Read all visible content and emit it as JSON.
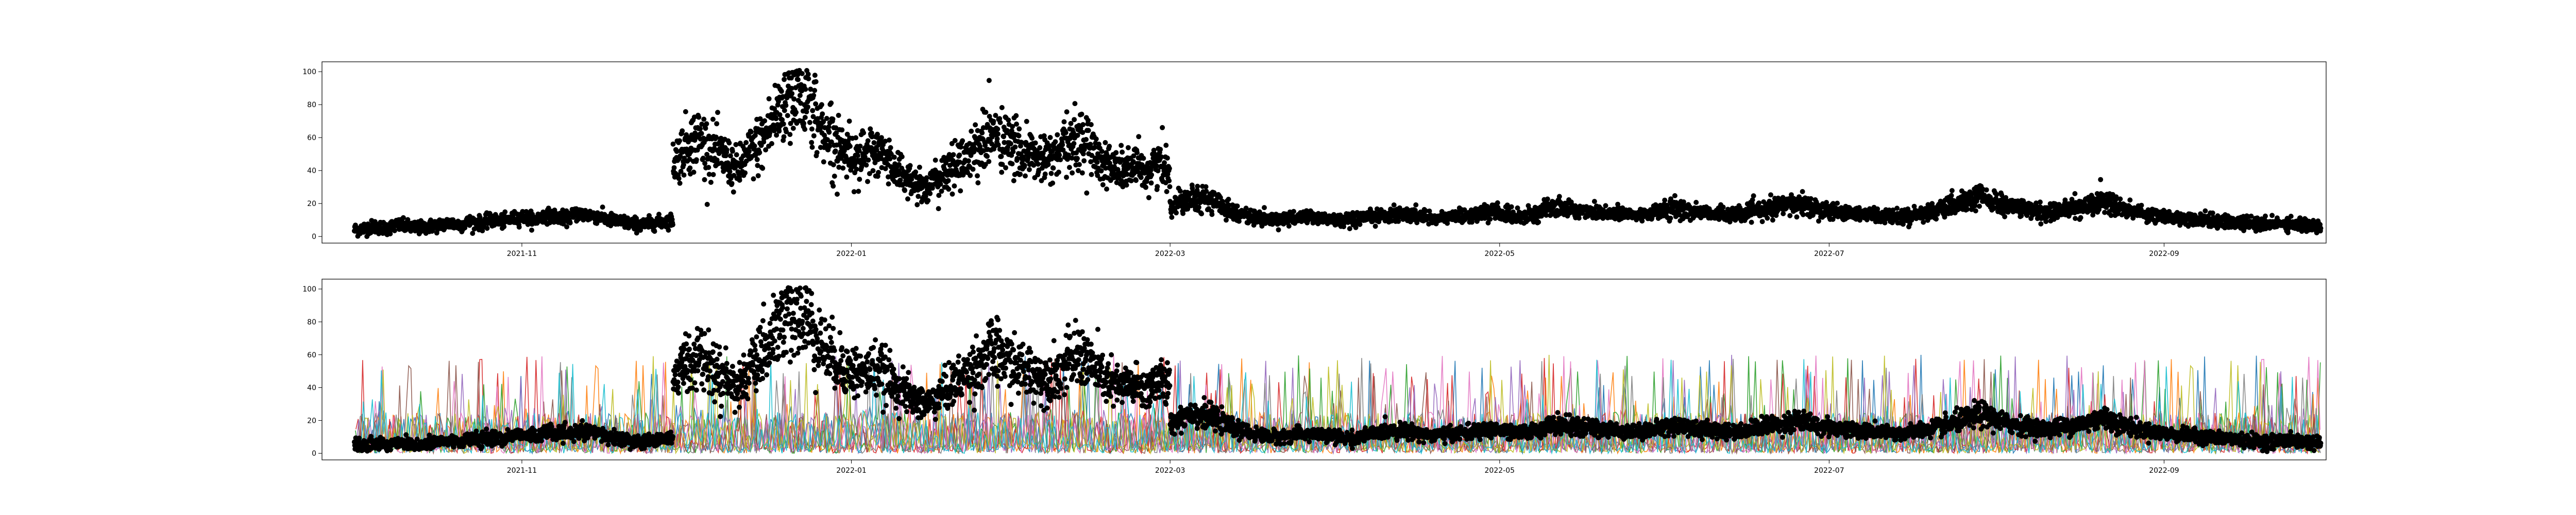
{
  "chart_data": [
    {
      "type": "scatter",
      "title": "",
      "xlabel": "",
      "ylabel": "",
      "x_range": [
        "2021-09-25",
        "2022-10-01"
      ],
      "xticks": [
        {
          "date": "2021-11-01",
          "label": "2021-11"
        },
        {
          "date": "2022-01-01",
          "label": "2022-01"
        },
        {
          "date": "2022-03-01",
          "label": "2022-03"
        },
        {
          "date": "2022-05-01",
          "label": "2022-05"
        },
        {
          "date": "2022-07-01",
          "label": "2022-07"
        },
        {
          "date": "2022-09-01",
          "label": "2022-09"
        }
      ],
      "yticks": [
        0,
        20,
        40,
        60,
        80,
        100
      ],
      "ylim": [
        -4,
        106
      ],
      "grid": false,
      "legend": "none",
      "marker_color": "#000000",
      "data_range": [
        "2021-10-01",
        "2022-09-30"
      ],
      "segments": [
        {
          "start": "2021-10-01",
          "end": "2021-11-28",
          "values": [
            4,
            5,
            6,
            5,
            7,
            6,
            5,
            6,
            7,
            8,
            7,
            9,
            8,
            10,
            9,
            11,
            12,
            10,
            13,
            12,
            11,
            14,
            13,
            12,
            10,
            9,
            8,
            7,
            8,
            9,
            10
          ]
        },
        {
          "start": "2021-11-29",
          "end": "2022-02-28",
          "values": [
            45,
            55,
            60,
            52,
            48,
            40,
            50,
            58,
            72,
            85,
            88,
            75,
            62,
            55,
            50,
            48,
            52,
            45,
            38,
            32,
            30,
            36,
            42,
            48,
            55,
            62,
            58,
            52,
            50,
            46,
            48,
            55,
            60,
            52,
            44,
            40,
            42,
            38,
            45,
            40
          ]
        },
        {
          "start": "2022-03-01",
          "end": "2022-09-30",
          "values": [
            18,
            25,
            22,
            16,
            12,
            10,
            11,
            12,
            10,
            9,
            12,
            14,
            13,
            11,
            12,
            13,
            15,
            12,
            14,
            18,
            16,
            15,
            14,
            13,
            15,
            17,
            15,
            14,
            13,
            16,
            18,
            20,
            17,
            15,
            14,
            13,
            12,
            14,
            16,
            20,
            24,
            19,
            17,
            15,
            16,
            18,
            22,
            17,
            14,
            12,
            11,
            10,
            9,
            8,
            7,
            8,
            7,
            6
          ]
        }
      ]
    },
    {
      "type": "scatter",
      "title": "",
      "xlabel": "",
      "ylabel": "",
      "x_range": [
        "2021-09-25",
        "2022-10-01"
      ],
      "xticks": [
        {
          "date": "2021-11-01",
          "label": "2021-11"
        },
        {
          "date": "2022-01-01",
          "label": "2022-01"
        },
        {
          "date": "2022-03-01",
          "label": "2022-03"
        },
        {
          "date": "2022-05-01",
          "label": "2022-05"
        },
        {
          "date": "2022-07-01",
          "label": "2022-07"
        },
        {
          "date": "2022-09-01",
          "label": "2022-09"
        }
      ],
      "yticks": [
        0,
        20,
        40,
        60,
        80,
        100
      ],
      "ylim": [
        -4,
        106
      ],
      "grid": false,
      "legend": "none",
      "marker_color": "#000000",
      "background_series_colors": [
        "#1f77b4",
        "#ff7f0e",
        "#2ca02c",
        "#d62728",
        "#9467bd",
        "#8c564b",
        "#e377c2",
        "#7f7f7f",
        "#bcbd22",
        "#17becf"
      ],
      "background_series_level": [
        5,
        25
      ],
      "background_series_peak": 60,
      "data_range": [
        "2021-10-01",
        "2022-09-30"
      ],
      "segments": [
        {
          "start": "2021-10-01",
          "end": "2021-11-28",
          "values": [
            4,
            5,
            6,
            5,
            7,
            6,
            5,
            6,
            7,
            8,
            7,
            9,
            8,
            10,
            9,
            11,
            12,
            10,
            13,
            12,
            11,
            14,
            13,
            12,
            10,
            9,
            8,
            7,
            8,
            9,
            10
          ]
        },
        {
          "start": "2021-11-29",
          "end": "2022-02-28",
          "values": [
            45,
            55,
            60,
            52,
            48,
            40,
            50,
            58,
            72,
            85,
            88,
            75,
            62,
            55,
            50,
            48,
            52,
            45,
            38,
            32,
            30,
            36,
            42,
            48,
            55,
            62,
            58,
            52,
            50,
            46,
            48,
            55,
            60,
            52,
            44,
            40,
            42,
            38,
            45,
            40
          ]
        },
        {
          "start": "2022-03-01",
          "end": "2022-09-30",
          "values": [
            18,
            25,
            22,
            16,
            12,
            10,
            11,
            12,
            10,
            9,
            12,
            14,
            13,
            11,
            12,
            13,
            15,
            12,
            14,
            18,
            16,
            15,
            14,
            13,
            15,
            17,
            15,
            14,
            13,
            16,
            18,
            20,
            17,
            15,
            14,
            13,
            12,
            14,
            16,
            20,
            24,
            19,
            17,
            15,
            16,
            18,
            22,
            17,
            14,
            12,
            11,
            10,
            9,
            8,
            7,
            8,
            7,
            6
          ]
        }
      ]
    }
  ]
}
